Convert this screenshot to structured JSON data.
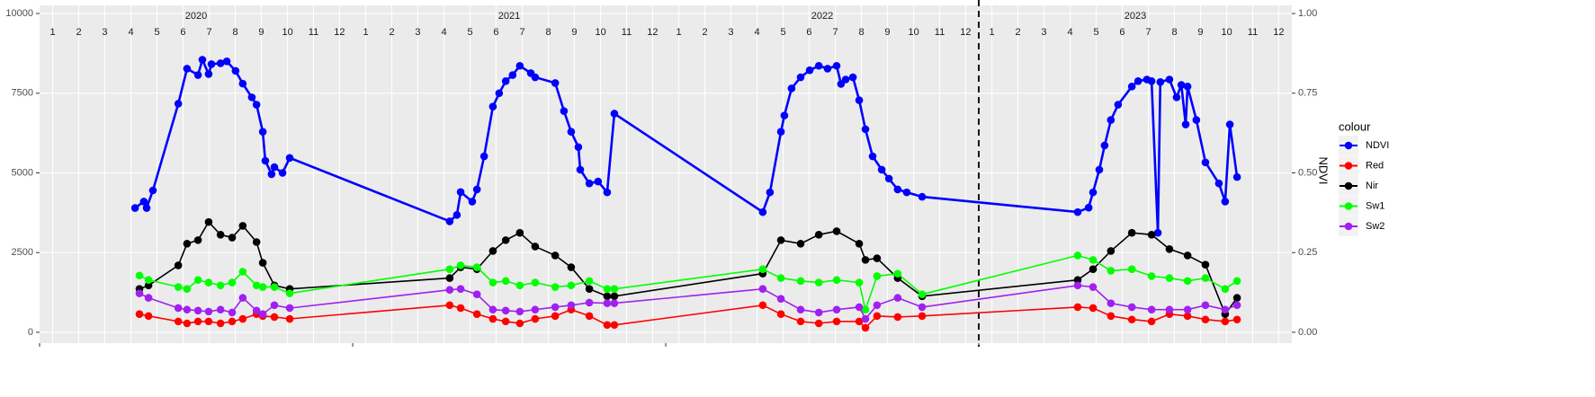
{
  "chart_data": {
    "type": "line",
    "xlim": [
      2020,
      2024
    ],
    "ylim": [
      -340,
      10255
    ],
    "yticks": [
      0,
      2500,
      5000,
      7500,
      10000
    ],
    "y2lim": [
      -0.034,
      1.0255
    ],
    "y2ticks": [
      {
        "value": 0,
        "label": "0.00"
      },
      {
        "value": 0.25,
        "label": "0.25"
      },
      {
        "value": 0.5,
        "label": "0.50"
      },
      {
        "value": 0.75,
        "label": "0.75"
      },
      {
        "value": 1,
        "label": "1.00"
      }
    ],
    "y2_label": "NDVI",
    "grid": true,
    "legend_title": "colour",
    "legend_position": "right",
    "year_labels": [
      {
        "value": 2020.5,
        "label": "2020"
      },
      {
        "value": 2021.5,
        "label": "2021"
      },
      {
        "value": 2022.5,
        "label": "2022"
      },
      {
        "value": 2023.5,
        "label": "2023"
      }
    ],
    "year_breaks": [
      2020,
      2021,
      2022,
      2023
    ],
    "vline": 2023,
    "xticks": [
      {
        "value": 2020.042,
        "label": "1"
      },
      {
        "value": 2020.125,
        "label": "2"
      },
      {
        "value": 2020.208,
        "label": "3"
      },
      {
        "value": 2020.292,
        "label": "4"
      },
      {
        "value": 2020.375,
        "label": "5"
      },
      {
        "value": 2020.458,
        "label": "6"
      },
      {
        "value": 2020.542,
        "label": "7"
      },
      {
        "value": 2020.625,
        "label": "8"
      },
      {
        "value": 2020.708,
        "label": "9"
      },
      {
        "value": 2020.792,
        "label": "10"
      },
      {
        "value": 2020.875,
        "label": "11"
      },
      {
        "value": 2020.958,
        "label": "12"
      },
      {
        "value": 2021.042,
        "label": "1"
      },
      {
        "value": 2021.125,
        "label": "2"
      },
      {
        "value": 2021.208,
        "label": "3"
      },
      {
        "value": 2021.292,
        "label": "4"
      },
      {
        "value": 2021.375,
        "label": "5"
      },
      {
        "value": 2021.458,
        "label": "6"
      },
      {
        "value": 2021.542,
        "label": "7"
      },
      {
        "value": 2021.625,
        "label": "8"
      },
      {
        "value": 2021.708,
        "label": "9"
      },
      {
        "value": 2021.792,
        "label": "10"
      },
      {
        "value": 2021.875,
        "label": "11"
      },
      {
        "value": 2021.958,
        "label": "12"
      },
      {
        "value": 2022.042,
        "label": "1"
      },
      {
        "value": 2022.125,
        "label": "2"
      },
      {
        "value": 2022.208,
        "label": "3"
      },
      {
        "value": 2022.292,
        "label": "4"
      },
      {
        "value": 2022.375,
        "label": "5"
      },
      {
        "value": 2022.458,
        "label": "6"
      },
      {
        "value": 2022.542,
        "label": "7"
      },
      {
        "value": 2022.625,
        "label": "8"
      },
      {
        "value": 2022.708,
        "label": "9"
      },
      {
        "value": 2022.792,
        "label": "10"
      },
      {
        "value": 2022.875,
        "label": "11"
      },
      {
        "value": 2022.958,
        "label": "12"
      },
      {
        "value": 2023.042,
        "label": "1"
      },
      {
        "value": 2023.125,
        "label": "2"
      },
      {
        "value": 2023.208,
        "label": "3"
      },
      {
        "value": 2023.292,
        "label": "4"
      },
      {
        "value": 2023.375,
        "label": "5"
      },
      {
        "value": 2023.458,
        "label": "6"
      },
      {
        "value": 2023.542,
        "label": "7"
      },
      {
        "value": 2023.625,
        "label": "8"
      },
      {
        "value": 2023.708,
        "label": "9"
      },
      {
        "value": 2023.792,
        "label": "10"
      },
      {
        "value": 2023.875,
        "label": "11"
      },
      {
        "value": 2023.958,
        "label": "12"
      }
    ],
    "x": [
      2020.319,
      2020.348,
      2020.443,
      2020.471,
      2020.506,
      2020.54,
      2020.578,
      2020.615,
      2020.649,
      2020.693,
      2020.713,
      2020.75,
      2020.799,
      2021.31,
      2021.345,
      2021.397,
      2021.448,
      2021.489,
      2021.534,
      2021.583,
      2021.647,
      2021.698,
      2021.756,
      2021.813,
      2021.836,
      2022.31,
      2022.368,
      2022.431,
      2022.489,
      2022.546,
      2022.618,
      2022.638,
      2022.675,
      2022.741,
      2022.819,
      2023.316,
      2023.365,
      2023.422,
      2023.489,
      2023.552,
      2023.609,
      2023.667,
      2023.724,
      2023.787,
      2023.825
    ],
    "series": [
      {
        "name": "NDVI",
        "color": "#0000ff",
        "axis": "y2",
        "width": 2.6,
        "x": [
          2020.305,
          2020.333,
          2020.342,
          2020.362,
          2020.443,
          2020.471,
          2020.506,
          2020.52,
          2020.54,
          2020.549,
          2020.578,
          2020.598,
          2020.626,
          2020.649,
          2020.678,
          2020.693,
          2020.713,
          2020.721,
          2020.741,
          2020.75,
          2020.776,
          2020.799,
          2021.31,
          2021.333,
          2021.345,
          2021.382,
          2021.397,
          2021.42,
          2021.448,
          2021.468,
          2021.489,
          2021.511,
          2021.534,
          2021.569,
          2021.583,
          2021.647,
          2021.675,
          2021.698,
          2021.721,
          2021.727,
          2021.756,
          2021.784,
          2021.813,
          2021.836,
          2022.31,
          2022.333,
          2022.368,
          2022.379,
          2022.402,
          2022.431,
          2022.46,
          2022.489,
          2022.517,
          2022.546,
          2022.56,
          2022.575,
          2022.598,
          2022.618,
          2022.638,
          2022.661,
          2022.69,
          2022.713,
          2022.741,
          2022.77,
          2022.819,
          2023.316,
          2023.351,
          2023.365,
          2023.385,
          2023.402,
          2023.422,
          2023.445,
          2023.489,
          2023.509,
          2023.537,
          2023.552,
          2023.572,
          2023.58,
          2023.609,
          2023.632,
          2023.647,
          2023.661,
          2023.667,
          2023.695,
          2023.724,
          2023.767,
          2023.787,
          2023.802,
          2023.825
        ],
        "values": [
          0.39,
          0.41,
          0.39,
          0.445,
          0.717,
          0.827,
          0.807,
          0.855,
          0.81,
          0.841,
          0.844,
          0.85,
          0.82,
          0.78,
          0.737,
          0.714,
          0.629,
          0.538,
          0.496,
          0.518,
          0.5,
          0.547,
          0.348,
          0.368,
          0.44,
          0.41,
          0.448,
          0.552,
          0.708,
          0.75,
          0.788,
          0.807,
          0.836,
          0.813,
          0.8,
          0.782,
          0.694,
          0.629,
          0.581,
          0.51,
          0.467,
          0.473,
          0.439,
          0.686,
          0.377,
          0.439,
          0.629,
          0.68,
          0.765,
          0.8,
          0.822,
          0.836,
          0.827,
          0.836,
          0.779,
          0.793,
          0.8,
          0.728,
          0.637,
          0.552,
          0.51,
          0.482,
          0.448,
          0.439,
          0.425,
          0.377,
          0.391,
          0.439,
          0.51,
          0.586,
          0.666,
          0.714,
          0.771,
          0.788,
          0.793,
          0.788,
          0.312,
          0.785,
          0.793,
          0.737,
          0.776,
          0.652,
          0.771,
          0.666,
          0.533,
          0.467,
          0.41,
          0.652,
          0.487
        ]
      },
      {
        "name": "Red",
        "color": "#ff0000",
        "width": 1.6,
        "values": [
          570,
          510,
          340,
          280,
          340,
          340,
          280,
          340,
          420,
          570,
          510,
          480,
          420,
          850,
          760,
          570,
          420,
          340,
          280,
          420,
          510,
          710,
          510,
          230,
          230,
          850,
          570,
          340,
          280,
          340,
          340,
          140,
          510,
          480,
          510,
          790,
          760,
          510,
          400,
          340,
          570,
          510,
          400,
          340,
          400
        ]
      },
      {
        "name": "Nir",
        "color": "#000000",
        "width": 1.6,
        "values": [
          1360,
          1470,
          2100,
          2780,
          2890,
          3460,
          3060,
          2970,
          3340,
          2830,
          2180,
          1470,
          1360,
          1700,
          2040,
          1980,
          2550,
          2890,
          3120,
          2690,
          2410,
          2040,
          1360,
          1130,
          1130,
          1840,
          2890,
          2780,
          3060,
          3170,
          2780,
          2270,
          2320,
          1700,
          1130,
          1640,
          1980,
          2550,
          3120,
          3060,
          2610,
          2410,
          2120,
          570,
          1080
        ]
      },
      {
        "name": "Sw1",
        "color": "#00ff00",
        "width": 1.6,
        "values": [
          1780,
          1640,
          1420,
          1360,
          1640,
          1560,
          1470,
          1560,
          1900,
          1470,
          1420,
          1420,
          1220,
          1980,
          2100,
          2040,
          1560,
          1610,
          1470,
          1560,
          1420,
          1470,
          1610,
          1360,
          1360,
          1980,
          1700,
          1610,
          1560,
          1640,
          1560,
          710,
          1760,
          1840,
          1190,
          2410,
          2270,
          1930,
          1980,
          1760,
          1700,
          1610,
          1700,
          1360,
          1610
        ]
      },
      {
        "name": "Sw2",
        "color": "#a020f0",
        "width": 1.6,
        "values": [
          1220,
          1080,
          760,
          710,
          680,
          650,
          710,
          620,
          1080,
          680,
          570,
          850,
          760,
          1330,
          1360,
          1190,
          710,
          680,
          650,
          710,
          790,
          850,
          930,
          910,
          910,
          1360,
          1050,
          710,
          620,
          710,
          790,
          420,
          850,
          1080,
          790,
          1470,
          1420,
          910,
          790,
          710,
          710,
          710,
          850,
          710,
          850
        ]
      }
    ]
  }
}
